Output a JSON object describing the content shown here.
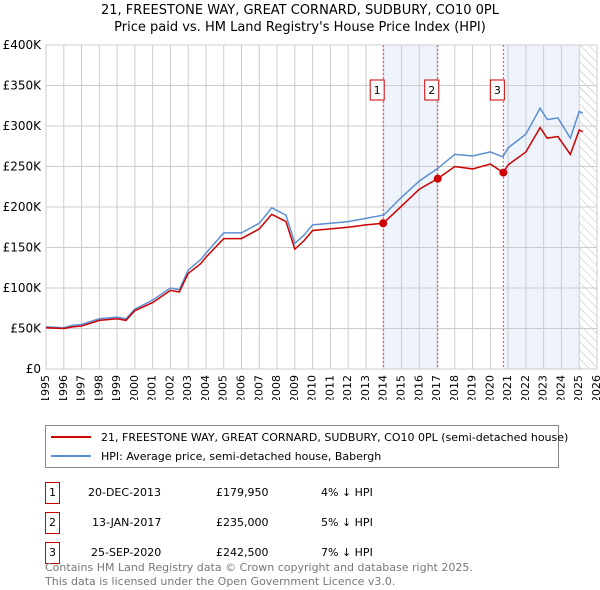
{
  "title": "21, FREESTONE WAY, GREAT CORNARD, SUDBURY, CO10 0PL",
  "subtitle": "Price paid vs. HM Land Registry's House Price Index (HPI)",
  "colors": {
    "property": "#cc0000",
    "hpi": "#5b8fd1",
    "shade": "#eef3fc"
  },
  "chart_data": {
    "type": "line",
    "title": "21, FREESTONE WAY, GREAT CORNARD, SUDBURY, CO10 0PL - Price paid vs. HM Land Registry's House Price Index (HPI)",
    "xlim": [
      1995,
      2026
    ],
    "ylim": [
      0,
      400000
    ],
    "x_ticks": [
      "1995",
      "1996",
      "1997",
      "1998",
      "1999",
      "2000",
      "2001",
      "2002",
      "2003",
      "2004",
      "2005",
      "2006",
      "2007",
      "2008",
      "2009",
      "2010",
      "2011",
      "2012",
      "2013",
      "2014",
      "2015",
      "2016",
      "2017",
      "2018",
      "2019",
      "2020",
      "2021",
      "2022",
      "2023",
      "2024",
      "2025",
      "2026"
    ],
    "y_ticks": [
      "£0",
      "£50K",
      "£100K",
      "£150K",
      "£200K",
      "£250K",
      "£300K",
      "£350K",
      "£400K"
    ],
    "grid": true,
    "series": [
      {
        "name": "HPI: Average price, semi-detached house, Babergh",
        "color": "#5b8fd1",
        "x": [
          1995,
          1996,
          1996.5,
          1997,
          1998,
          1999,
          1999.5,
          2000,
          2001,
          2002,
          2002.5,
          2003,
          2003.7,
          2004,
          2005,
          2006,
          2007,
          2007.7,
          2008.5,
          2009,
          2009.5,
          2010,
          2011,
          2012,
          2013,
          2014,
          2015,
          2016,
          2017,
          2018,
          2019,
          2020,
          2020.7,
          2021,
          2022,
          2022.8,
          2023.2,
          2023.8,
          2024.5,
          2025,
          2025.2
        ],
        "y": [
          52000,
          51000,
          54000,
          55000,
          62000,
          64000,
          62000,
          74000,
          85000,
          100000,
          98000,
          122000,
          135000,
          143000,
          168000,
          168000,
          180000,
          199000,
          190000,
          155000,
          165000,
          178000,
          180000,
          182000,
          186000,
          190000,
          212000,
          232000,
          247000,
          265000,
          263000,
          268000,
          262000,
          273000,
          290000,
          322000,
          308000,
          310000,
          285000,
          318000,
          316000
        ]
      },
      {
        "name": "21, FREESTONE WAY, GREAT CORNARD, SUDBURY, CO10 0PL (semi-detached house)",
        "color": "#cc0000",
        "x": [
          1995,
          1996,
          1996.5,
          1997,
          1998,
          1999,
          1999.5,
          2000,
          2001,
          2002,
          2002.5,
          2003,
          2003.7,
          2004,
          2005,
          2006,
          2007,
          2007.7,
          2008.5,
          2009,
          2009.5,
          2010,
          2011,
          2012,
          2013,
          2013.97,
          2015,
          2016,
          2017.04,
          2018,
          2019,
          2020,
          2020.73,
          2021,
          2022,
          2022.8,
          2023.2,
          2023.8,
          2024.5,
          2025,
          2025.2
        ],
        "y": [
          51000,
          50000,
          52000,
          53000,
          60000,
          62000,
          60000,
          72000,
          82000,
          97000,
          95000,
          118000,
          130000,
          138000,
          161000,
          161000,
          173000,
          191000,
          182000,
          148000,
          158000,
          171000,
          173000,
          175000,
          178000,
          179950,
          201000,
          222000,
          235000,
          250000,
          247000,
          253000,
          242500,
          252000,
          268000,
          298000,
          285000,
          287000,
          265000,
          295000,
          293000
        ]
      }
    ],
    "sales": [
      {
        "label": "1",
        "x": 2013.97,
        "y": 179950
      },
      {
        "label": "2",
        "x": 2017.04,
        "y": 235000
      },
      {
        "label": "3",
        "x": 2020.73,
        "y": 242500
      }
    ],
    "shaded_ranges": [
      [
        2013.97,
        2017.04
      ],
      [
        2020.73,
        2025.0
      ]
    ],
    "hatched_range": [
      2025.0,
      2026
    ]
  },
  "legend": {
    "property": "21, FREESTONE WAY, GREAT CORNARD, SUDBURY, CO10 0PL (semi-detached house)",
    "hpi": "HPI: Average price, semi-detached house, Babergh"
  },
  "transactions": [
    {
      "num": "1",
      "date": "20-DEC-2013",
      "price": "£179,950",
      "diff": "4% ↓ HPI"
    },
    {
      "num": "2",
      "date": "13-JAN-2017",
      "price": "£235,000",
      "diff": "5% ↓ HPI"
    },
    {
      "num": "3",
      "date": "25-SEP-2020",
      "price": "£242,500",
      "diff": "7% ↓ HPI"
    }
  ],
  "footer": [
    "Contains HM Land Registry data © Crown copyright and database right 2025.",
    "This data is licensed under the Open Government Licence v3.0."
  ]
}
